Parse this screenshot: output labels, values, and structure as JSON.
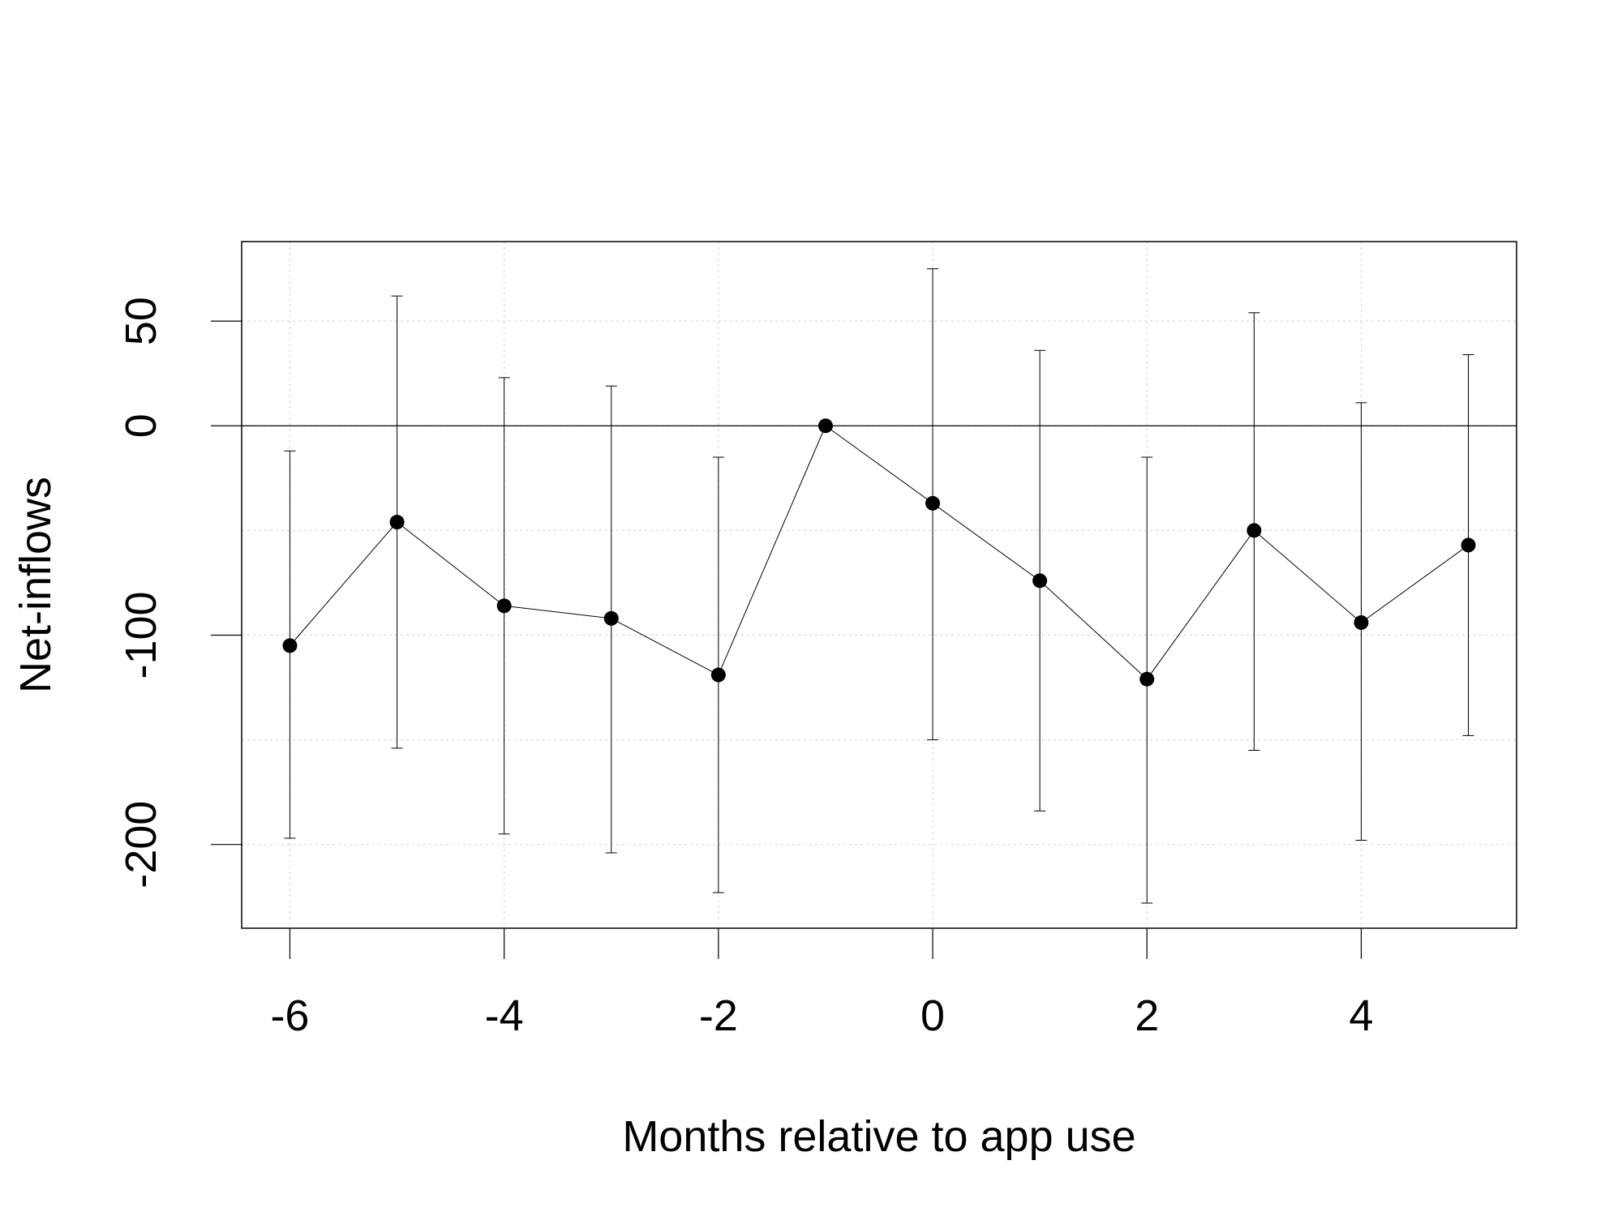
{
  "chart_data": {
    "type": "line",
    "title": "",
    "xlabel": "Months relative to app use",
    "ylabel": "Net-inflows",
    "xlim": [
      -6.45,
      5.45
    ],
    "ylim": [
      -240,
      88
    ],
    "x_ticks": [
      -6,
      -4,
      -2,
      0,
      2,
      4
    ],
    "x_tick_labels": [
      "-6",
      "-4",
      "-2",
      "0",
      "2",
      "4"
    ],
    "y_ticks": [
      -200,
      -100,
      0,
      50
    ],
    "y_tick_labels": [
      "-200",
      "-100",
      "0",
      "50"
    ],
    "x_grid": [
      -6,
      -4,
      -2,
      0,
      2,
      4
    ],
    "y_grid": [
      -200,
      -150,
      -100,
      -50,
      0,
      50
    ],
    "grid": true,
    "reference_line_y": 0,
    "x": [
      -6,
      -5,
      -4,
      -3,
      -2,
      -1,
      0,
      1,
      2,
      3,
      4,
      5
    ],
    "y": [
      -105,
      -46,
      -86,
      -92,
      -119,
      0,
      -37,
      -74,
      -121,
      -50,
      -94,
      -57
    ],
    "ci_lower": [
      -197,
      -154,
      -195,
      -204,
      -223,
      null,
      -150,
      -184,
      -228,
      -155,
      -198,
      -148
    ],
    "ci_upper": [
      -12,
      62,
      23,
      19,
      -15,
      null,
      75,
      36,
      -15,
      54,
      11,
      34
    ],
    "colors": {
      "line": "#000000",
      "points": "#000000",
      "grid": "#d9d9d9",
      "frame": "#000000"
    }
  }
}
